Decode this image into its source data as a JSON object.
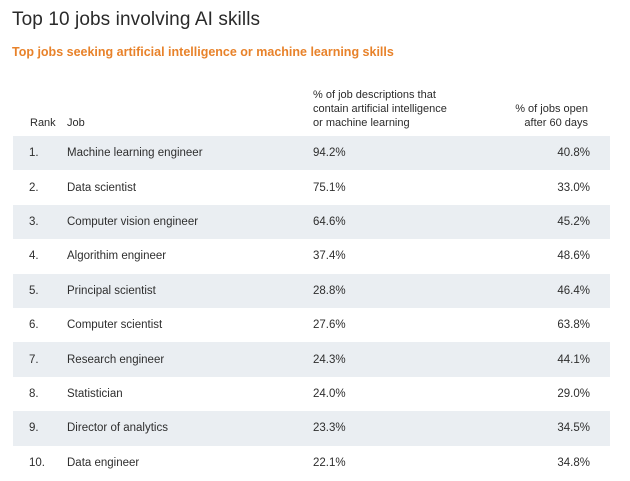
{
  "title": "Top 10 jobs involving AI skills",
  "subtitle": "Top jobs seeking artificial intelligence or machine learning skills",
  "headers": {
    "rank": "Rank",
    "job": "Job",
    "pct_line1": "% of job descriptions that",
    "pct_line2": "contain artificial intelligence",
    "pct_line3": "or machine learning",
    "open_line1": "% of jobs open",
    "open_line2": "after 60 days"
  },
  "rows": [
    {
      "rank": "1.",
      "job": "Machine learning engineer",
      "pct": "94.2%",
      "open": "40.8%"
    },
    {
      "rank": "2.",
      "job": "Data scientist",
      "pct": "75.1%",
      "open": "33.0%"
    },
    {
      "rank": "3.",
      "job": "Computer vision engineer",
      "pct": "64.6%",
      "open": "45.2%"
    },
    {
      "rank": "4.",
      "job": "Algorithim engineer",
      "pct": "37.4%",
      "open": "48.6%"
    },
    {
      "rank": "5.",
      "job": "Principal scientist",
      "pct": "28.8%",
      "open": "46.4%"
    },
    {
      "rank": "6.",
      "job": "Computer scientist",
      "pct": "27.6%",
      "open": "63.8%"
    },
    {
      "rank": "7.",
      "job": "Research engineer",
      "pct": "24.3%",
      "open": "44.1%"
    },
    {
      "rank": "8.",
      "job": "Statistician",
      "pct": "24.0%",
      "open": "29.0%"
    },
    {
      "rank": "9.",
      "job": "Director of analytics",
      "pct": "23.3%",
      "open": "34.5%"
    },
    {
      "rank": "10.",
      "job": "Data engineer",
      "pct": "22.1%",
      "open": "34.8%"
    }
  ],
  "colors": {
    "subtitle": "#e8822a",
    "row_shade": "#eaeef2"
  }
}
